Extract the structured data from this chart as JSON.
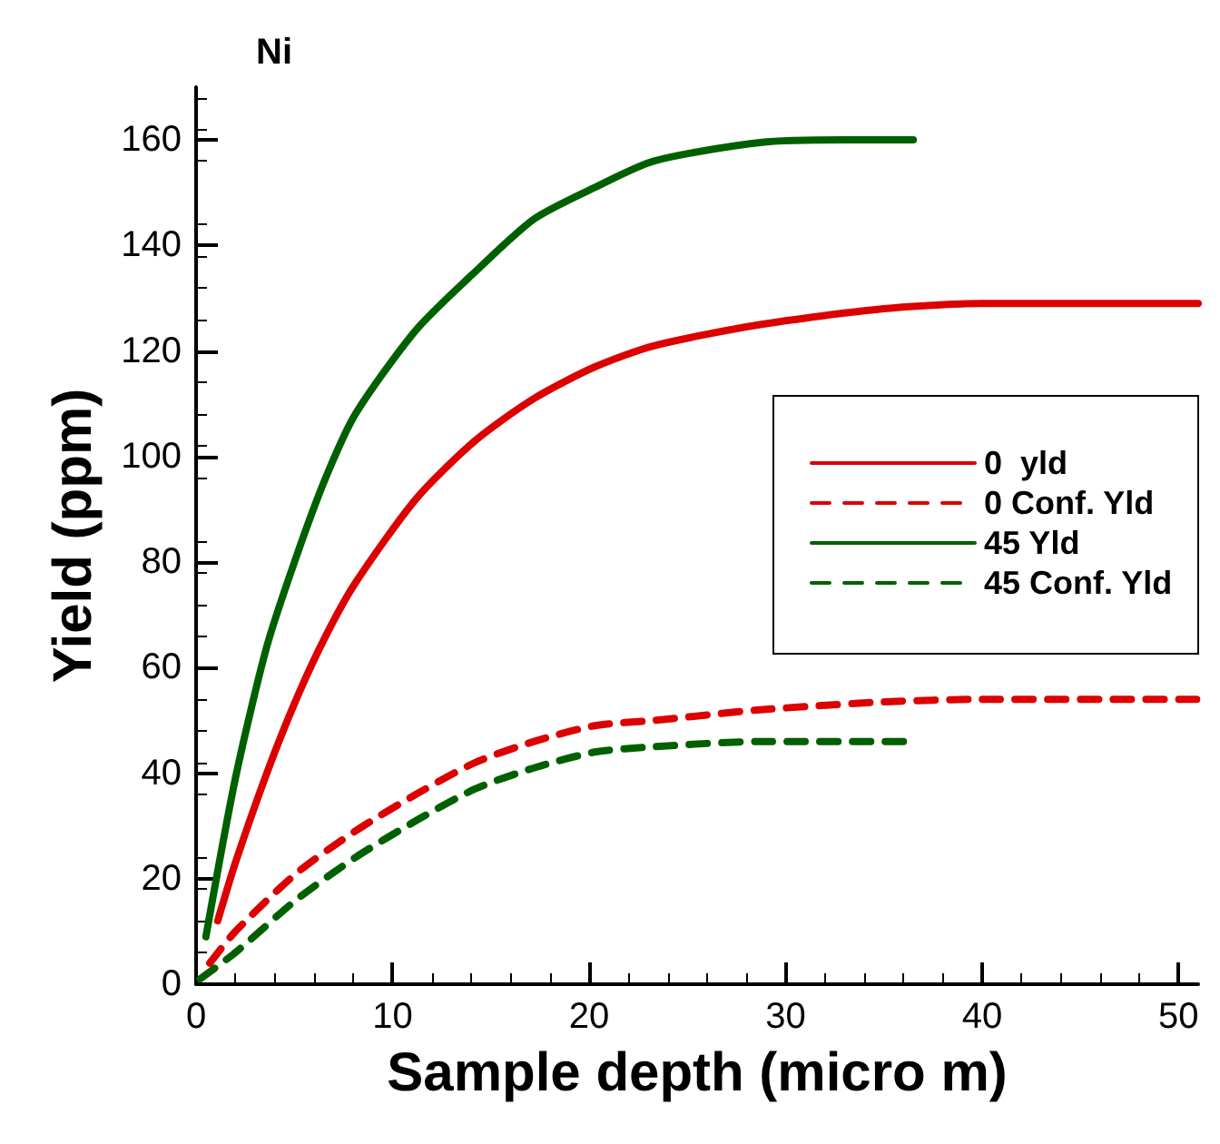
{
  "chart_data": {
    "type": "line",
    "title": "Ni",
    "xlabel": "Sample depth (micro m)",
    "ylabel": "Yield (ppm)",
    "xlim": [
      0,
      51
    ],
    "ylim": [
      0,
      170
    ],
    "xticks": [
      0,
      10,
      20,
      30,
      40,
      50
    ],
    "yticks": [
      0,
      20,
      40,
      60,
      80,
      100,
      120,
      140,
      160
    ],
    "grid": false,
    "legend": "right",
    "marker": "none",
    "series": [
      {
        "name": "0  yld",
        "color": "#dd0000",
        "line_style": "solid",
        "x": [
          1.1,
          2,
          3.6,
          5.1,
          6.6,
          8.1,
          11.2,
          14.2,
          17.2,
          20.3,
          23.3,
          28.7,
          35,
          40,
          51
        ],
        "values": [
          12,
          23,
          40,
          54,
          66,
          76,
          92,
          103,
          111,
          117,
          121,
          125,
          128,
          129,
          129
        ]
      },
      {
        "name": "0 Conf. Yld",
        "color": "#dd0000",
        "line_style": "dashed",
        "x": [
          0.7,
          2,
          5.1,
          8.1,
          11.2,
          14.2,
          17.2,
          20.3,
          23.3,
          28.7,
          35,
          40,
          51
        ],
        "values": [
          4,
          10,
          21,
          29,
          36,
          42,
          46,
          49,
          50,
          52,
          53.5,
          54,
          54
        ]
      },
      {
        "name": "45 Yld",
        "color": "#006000",
        "line_style": "solid",
        "x": [
          0.5,
          2,
          3.6,
          5.1,
          6.6,
          8.1,
          11.2,
          14.2,
          17.2,
          20.3,
          23.3,
          28.7,
          33,
          36.5
        ],
        "values": [
          9,
          39,
          64,
          81,
          96,
          108,
          124,
          135,
          145,
          151,
          156,
          159.5,
          160,
          160
        ]
      },
      {
        "name": "45 Conf. Yld",
        "color": "#006000",
        "line_style": "dashed",
        "x": [
          0.2,
          2,
          5.1,
          8.1,
          11.2,
          14.2,
          17.2,
          20.3,
          23.3,
          28.7,
          36.5
        ],
        "values": [
          1,
          6,
          16,
          24,
          31,
          37,
          41,
          44,
          45,
          46,
          46
        ]
      }
    ]
  }
}
